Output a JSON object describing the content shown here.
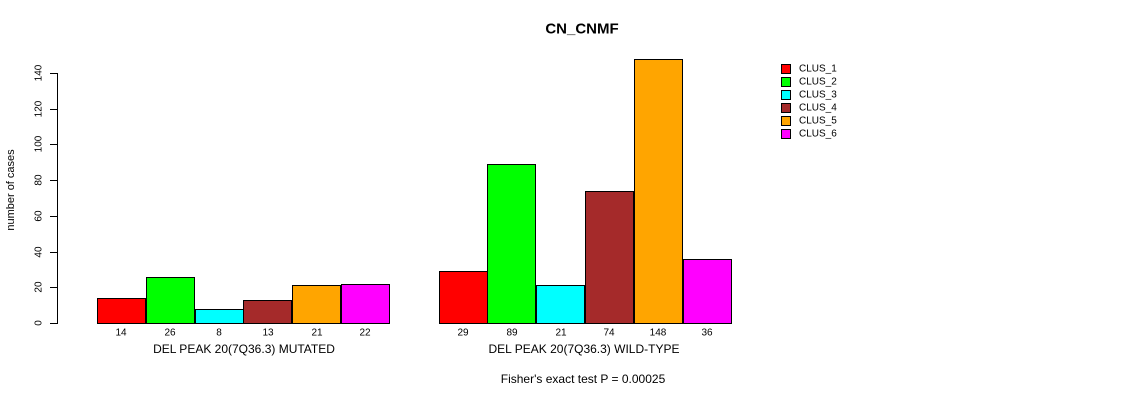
{
  "chart_data": {
    "type": "bar",
    "grouped": true,
    "title": "CN_CNMF",
    "ylabel": "number of cases",
    "xlabel": "",
    "ylim": [
      0,
      148
    ],
    "yticks": [
      0,
      20,
      40,
      60,
      80,
      100,
      120,
      140
    ],
    "grid": false,
    "legend_position": "right-outside-top",
    "bar_value_labels": true,
    "categories": [
      "DEL PEAK 20(7Q36.3) MUTATED",
      "DEL PEAK 20(7Q36.3) WILD-TYPE"
    ],
    "series": [
      {
        "name": "CLUS_1",
        "color": "#FF0000",
        "values": [
          14,
          29
        ]
      },
      {
        "name": "CLUS_2",
        "color": "#00FF00",
        "values": [
          26,
          89
        ]
      },
      {
        "name": "CLUS_3",
        "color": "#00FFFF",
        "values": [
          8,
          21
        ]
      },
      {
        "name": "CLUS_4",
        "color": "#A52A2A",
        "values": [
          13,
          74
        ]
      },
      {
        "name": "CLUS_5",
        "color": "#FFA500",
        "values": [
          21,
          148
        ]
      },
      {
        "name": "CLUS_6",
        "color": "#FF00FF",
        "values": [
          22,
          36
        ]
      }
    ],
    "annotation": "Fisher's exact test P = 0.00025"
  },
  "colors": {
    "axis": "#000000",
    "bar_border": "#000000",
    "background": "#FFFFFF"
  }
}
